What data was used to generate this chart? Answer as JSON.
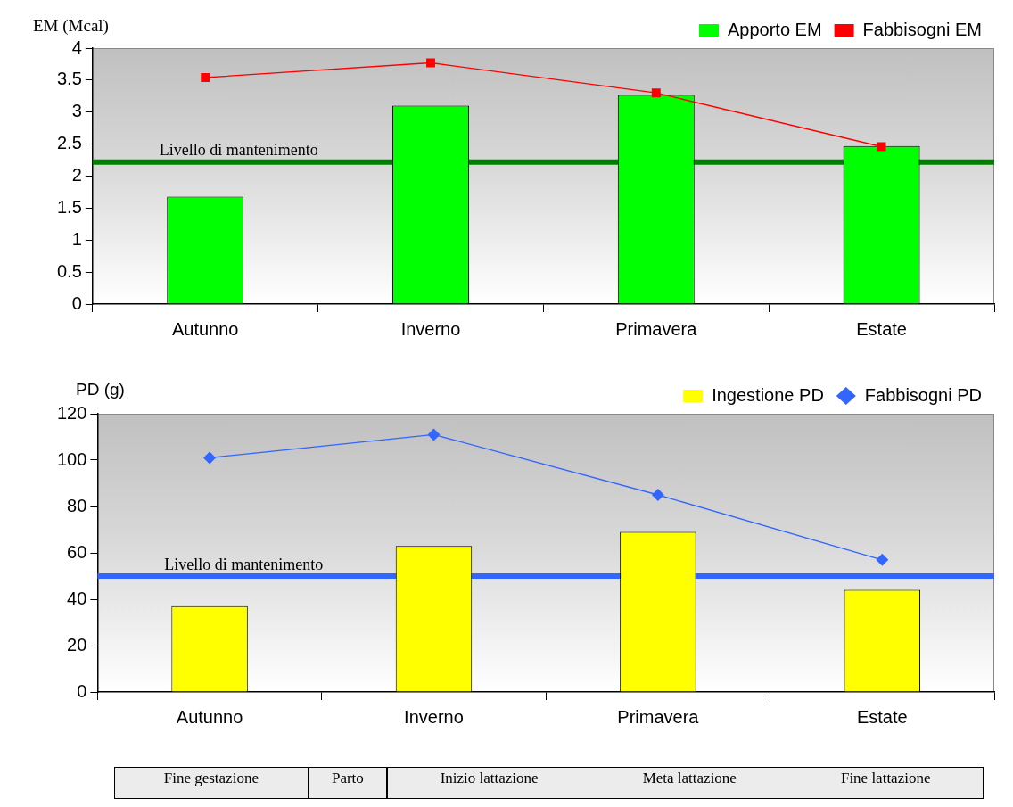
{
  "chart_data": [
    {
      "type": "bar",
      "ylabel": "EM (Mcal)",
      "categories": [
        "Autunno",
        "Inverno",
        "Primavera",
        "Estate"
      ],
      "series": [
        {
          "name": "Apporto EM",
          "color": "#00ff00",
          "values": [
            1.68,
            3.1,
            3.27,
            2.47
          ]
        },
        {
          "type": "line",
          "name": "Fabbisogni EM",
          "color": "#ff0000",
          "marker": "square",
          "values": [
            3.54,
            3.77,
            3.3,
            2.46
          ]
        }
      ],
      "ylim": [
        0,
        4
      ],
      "yticks": [
        0,
        0.5,
        1,
        1.5,
        2,
        2.5,
        3,
        3.5,
        4
      ],
      "grid": false,
      "legend": "top right",
      "ref_lines": [
        {
          "axis": "y",
          "value": 2.22,
          "label": "Livello di mantenimento",
          "color": "#008000"
        }
      ]
    },
    {
      "type": "bar",
      "ylabel": "PD (g)",
      "categories": [
        "Autunno",
        "Inverno",
        "Primavera",
        "Estate"
      ],
      "series": [
        {
          "name": "Ingestione PD",
          "color": "#ffff00",
          "values": [
            37,
            63,
            69,
            44
          ]
        },
        {
          "type": "line",
          "name": "Fabbisogni PD",
          "color": "#3366ff",
          "marker": "diamond",
          "values": [
            101,
            111,
            85,
            57
          ]
        }
      ],
      "ylim": [
        0,
        120
      ],
      "yticks": [
        0,
        20,
        40,
        60,
        80,
        100,
        120
      ],
      "grid": false,
      "legend": "top right",
      "ref_lines": [
        {
          "axis": "y",
          "value": 50,
          "label": "Livello di mantenimento",
          "color": "#3366ff"
        }
      ],
      "annotations": [
        "Fine gestazione",
        "Parto",
        "Inizio lattazione",
        "Meta lattazione",
        "Fine lattazione"
      ]
    }
  ]
}
